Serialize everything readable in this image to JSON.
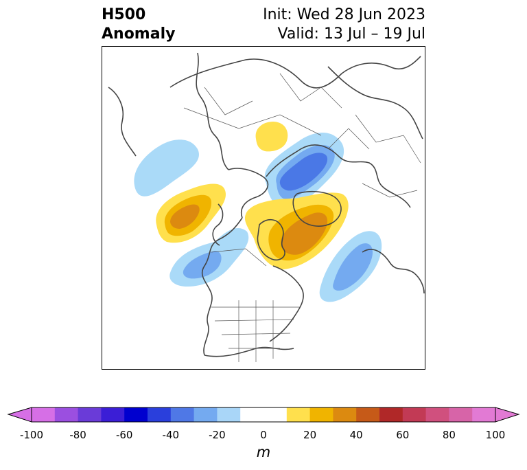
{
  "header": {
    "title_line1": "H500",
    "title_line2": "Anomaly",
    "init": "Init: Wed 28 Jun 2023",
    "valid": "Valid: 13 Jul – 19 Jul"
  },
  "colorbar": {
    "unit": "m",
    "tick_labels": [
      "-100",
      "-80",
      "-60",
      "-40",
      "-20",
      "0",
      "20",
      "40",
      "60",
      "80",
      "100"
    ],
    "colors": [
      "#d66fe6",
      "#9b4fe0",
      "#6a3bd8",
      "#3b1ed6",
      "#0000cf",
      "#2a3fdc",
      "#4f78e6",
      "#74aaf0",
      "#a9d6f8",
      "#ffffff",
      "#ffe04d",
      "#f0b400",
      "#dc8a10",
      "#c65a18",
      "#b02828",
      "#c23a55",
      "#d0507e",
      "#d764a8",
      "#e27ad4"
    ],
    "colors_note": "",
    "range": [
      -100,
      100
    ],
    "step": 10
  },
  "map": {
    "projection": "polar-stereographic",
    "anomaly_colors": {
      "neg_light": "#aadaf8",
      "neg_mid": "#74aaf0",
      "neg_dark": "#4a78e6",
      "pos_light": "#ffe04d",
      "pos_mid": "#f0b400",
      "pos_dark": "#dc8a10"
    }
  }
}
